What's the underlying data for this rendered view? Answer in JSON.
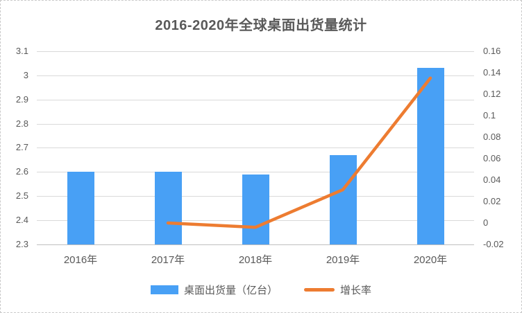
{
  "chart_data": {
    "type": "combo-bar-line",
    "title": "2016-2020年全球桌面出货量统计",
    "categories": [
      "2016年",
      "2017年",
      "2018年",
      "2019年",
      "2020年"
    ],
    "series": [
      {
        "name": "桌面出货量（亿台）",
        "type": "bar",
        "axis": "left",
        "color": "#48A0F5",
        "values": [
          2.6,
          2.6,
          2.59,
          2.67,
          3.03
        ]
      },
      {
        "name": "增长率",
        "type": "line",
        "axis": "right",
        "color": "#ED7C31",
        "values": [
          null,
          0,
          -0.004,
          0.031,
          0.135
        ]
      }
    ],
    "left_axis": {
      "min": 2.3,
      "max": 3.1,
      "step": 0.1,
      "tick_labels": [
        "3.1",
        "3",
        "2.9",
        "2.8",
        "2.7",
        "2.6",
        "2.5",
        "2.4",
        "2.3"
      ]
    },
    "right_axis": {
      "min": -0.02,
      "max": 0.16,
      "step": 0.02,
      "tick_labels": [
        "0.16",
        "0.14",
        "0.12",
        "0.1",
        "0.08",
        "0.06",
        "0.04",
        "0.02",
        "0",
        "-0.02"
      ]
    },
    "grid": true,
    "legend_position": "bottom",
    "colors": {
      "bar": "#48A0F5",
      "line": "#ED7C31",
      "grid": "#D9D9D9",
      "axis_line": "#BFBFBF",
      "text": "#595959",
      "border": "#C9C9C9"
    }
  }
}
